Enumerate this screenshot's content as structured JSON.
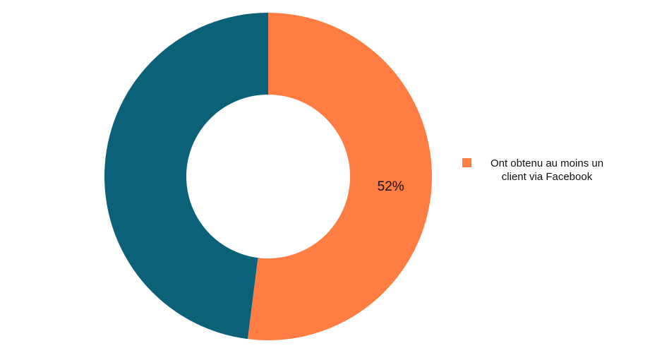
{
  "chart_data": {
    "type": "donut",
    "categories": [
      "Ont obtenu au moins un client via Facebook",
      null
    ],
    "values": [
      52,
      48
    ],
    "value_labels": [
      "52%",
      null
    ],
    "colors": [
      "#ff7c43",
      "#0b6278"
    ]
  }
}
